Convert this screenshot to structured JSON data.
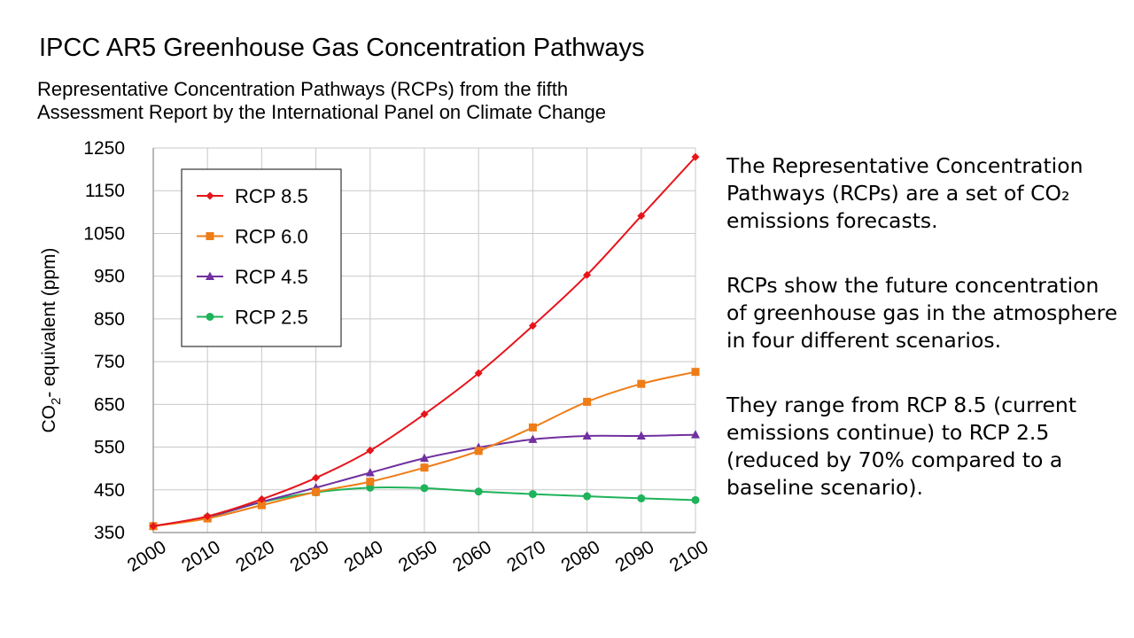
{
  "slide": {
    "paragraphs": [
      "The Representative Concentration Pathways (RCPs) are a set of CO₂ emissions forecasts.",
      "RCPs show the future concentration of greenhouse gas in the atmosphere in four different scenarios.",
      "They range from RCP 8.5 (current emissions continue) to RCP 2.5 (reduced by 70% compared to a baseline scenario)."
    ]
  },
  "chart_data": {
    "type": "line",
    "title": "IPCC AR5 Greenhouse Gas Concentration Pathways",
    "subtitle_lines": [
      "Representative Concentration Pathways (RCPs) from the fifth",
      "Assessment Report by the International Panel on Climate Change"
    ],
    "xlabel": "",
    "ylabel": "CO2- equivalent (ppm)",
    "ylabel_main": "CO",
    "ylabel_sub": "2",
    "ylabel_rest": "- equivalent (ppm)",
    "x": [
      2000,
      2010,
      2020,
      2030,
      2040,
      2050,
      2060,
      2070,
      2080,
      2090,
      2100
    ],
    "xlim": [
      2000,
      2100
    ],
    "ylim": [
      350,
      1250
    ],
    "yticks": [
      350,
      450,
      550,
      650,
      750,
      850,
      950,
      1050,
      1150,
      1250
    ],
    "grid": true,
    "legend_position": "top-left",
    "series": [
      {
        "name": "RCP 8.5",
        "color": "#e8141b",
        "marker": "diamond",
        "values": [
          365,
          388,
          428,
          478,
          542,
          627,
          723,
          834,
          953,
          1091,
          1229
        ]
      },
      {
        "name": "RCP 6.0",
        "color": "#ee7d17",
        "marker": "square",
        "values": [
          365,
          383,
          414,
          445,
          469,
          502,
          541,
          596,
          656,
          698,
          726
        ]
      },
      {
        "name": "RCP 4.5",
        "color": "#7030a0",
        "marker": "triangle",
        "values": [
          365,
          387,
          422,
          455,
          490,
          524,
          549,
          568,
          576,
          576,
          579
        ]
      },
      {
        "name": "RCP 2.5",
        "color": "#1fb35a",
        "marker": "circle",
        "values": [
          365,
          386,
          421,
          444,
          455,
          454,
          446,
          440,
          435,
          430,
          426
        ]
      }
    ]
  }
}
